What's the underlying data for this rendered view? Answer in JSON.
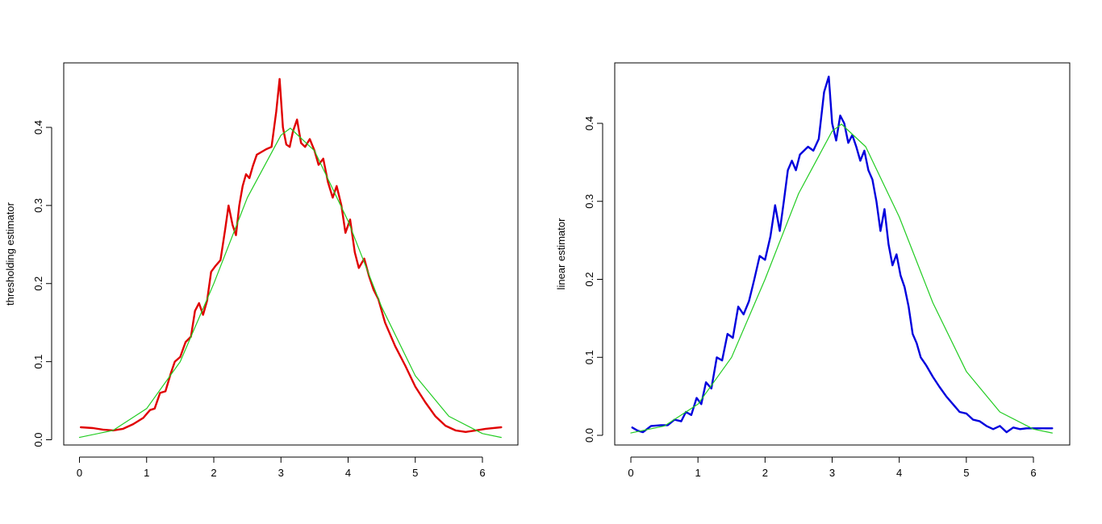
{
  "chart_data": [
    {
      "type": "line",
      "title": "",
      "xlabel": "",
      "ylabel": "thresholding estimator",
      "xlim": [
        0,
        6.28
      ],
      "ylim": [
        0,
        0.4736
      ],
      "x_ticks": [
        0,
        1,
        2,
        3,
        4,
        5,
        6
      ],
      "y_ticks": [
        0.0,
        0.1,
        0.2,
        0.3,
        0.4
      ],
      "x_tick_labels": [
        "0",
        "1",
        "2",
        "3",
        "4",
        "5",
        "6"
      ],
      "y_tick_labels": [
        "0.0",
        "0.1",
        "0.2",
        "0.3",
        "0.4"
      ],
      "grid": false,
      "series": [
        {
          "color": "#e00000",
          "x": [
            0.02,
            0.2,
            0.35,
            0.5,
            0.65,
            0.8,
            0.95,
            1.05,
            1.12,
            1.2,
            1.28,
            1.36,
            1.42,
            1.5,
            1.58,
            1.66,
            1.72,
            1.78,
            1.84,
            1.9,
            1.96,
            2.02,
            2.1,
            2.17,
            2.22,
            2.28,
            2.33,
            2.38,
            2.43,
            2.48,
            2.53,
            2.58,
            2.64,
            2.7,
            2.78,
            2.86,
            2.93,
            2.98,
            3.03,
            3.08,
            3.13,
            3.18,
            3.24,
            3.3,
            3.36,
            3.43,
            3.5,
            3.56,
            3.63,
            3.7,
            3.77,
            3.83,
            3.9,
            3.96,
            4.03,
            4.1,
            4.16,
            4.24,
            4.31,
            4.38,
            4.45,
            4.55,
            4.7,
            4.85,
            5.0,
            5.15,
            5.3,
            5.45,
            5.6,
            5.75,
            5.9,
            6.05,
            6.28
          ],
          "y": [
            0.016,
            0.015,
            0.013,
            0.012,
            0.014,
            0.02,
            0.028,
            0.038,
            0.04,
            0.06,
            0.062,
            0.085,
            0.1,
            0.106,
            0.125,
            0.132,
            0.165,
            0.175,
            0.16,
            0.178,
            0.215,
            0.222,
            0.23,
            0.27,
            0.3,
            0.275,
            0.262,
            0.3,
            0.325,
            0.34,
            0.335,
            0.35,
            0.365,
            0.368,
            0.372,
            0.375,
            0.42,
            0.462,
            0.4,
            0.378,
            0.375,
            0.395,
            0.41,
            0.38,
            0.375,
            0.385,
            0.37,
            0.352,
            0.36,
            0.33,
            0.31,
            0.325,
            0.3,
            0.265,
            0.282,
            0.24,
            0.22,
            0.232,
            0.21,
            0.192,
            0.18,
            0.15,
            0.12,
            0.095,
            0.068,
            0.048,
            0.03,
            0.018,
            0.012,
            0.01,
            0.012,
            0.014,
            0.016
          ]
        },
        {
          "color": "#22cc22",
          "x": [
            0.0,
            0.5,
            1.0,
            1.5,
            2.0,
            2.5,
            3.0,
            3.14,
            3.5,
            4.0,
            4.5,
            5.0,
            5.5,
            6.0,
            6.28
          ],
          "y": [
            0.003,
            0.012,
            0.04,
            0.1,
            0.2,
            0.31,
            0.39,
            0.399,
            0.37,
            0.28,
            0.17,
            0.082,
            0.03,
            0.008,
            0.003
          ]
        }
      ]
    },
    {
      "type": "line",
      "title": "",
      "xlabel": "",
      "ylabel": "linear estimator",
      "xlim": [
        0,
        6.28
      ],
      "ylim": [
        0,
        0.4697
      ],
      "x_ticks": [
        0,
        1,
        2,
        3,
        4,
        5,
        6
      ],
      "y_ticks": [
        0.0,
        0.1,
        0.2,
        0.3,
        0.4
      ],
      "x_tick_labels": [
        "0",
        "1",
        "2",
        "3",
        "4",
        "5",
        "6"
      ],
      "y_tick_labels": [
        "0.0",
        "0.1",
        "0.2",
        "0.3",
        "0.4"
      ],
      "grid": false,
      "series": [
        {
          "color": "#0000dd",
          "x": [
            0.02,
            0.1,
            0.18,
            0.3,
            0.45,
            0.55,
            0.65,
            0.75,
            0.82,
            0.9,
            0.98,
            1.05,
            1.12,
            1.2,
            1.28,
            1.36,
            1.44,
            1.52,
            1.6,
            1.68,
            1.76,
            1.84,
            1.92,
            2.0,
            2.08,
            2.15,
            2.22,
            2.28,
            2.34,
            2.4,
            2.46,
            2.52,
            2.58,
            2.64,
            2.72,
            2.8,
            2.88,
            2.95,
            3.0,
            3.06,
            3.12,
            3.18,
            3.24,
            3.3,
            3.36,
            3.42,
            3.48,
            3.54,
            3.6,
            3.66,
            3.72,
            3.78,
            3.84,
            3.9,
            3.96,
            4.02,
            4.08,
            4.14,
            4.2,
            4.26,
            4.32,
            4.4,
            4.5,
            4.6,
            4.7,
            4.8,
            4.9,
            5.0,
            5.1,
            5.2,
            5.3,
            5.4,
            5.5,
            5.6,
            5.7,
            5.8,
            5.9,
            6.0,
            6.1,
            6.2,
            6.28
          ],
          "y": [
            0.01,
            0.006,
            0.004,
            0.012,
            0.013,
            0.013,
            0.02,
            0.018,
            0.03,
            0.026,
            0.048,
            0.04,
            0.068,
            0.06,
            0.1,
            0.096,
            0.13,
            0.125,
            0.165,
            0.155,
            0.172,
            0.2,
            0.23,
            0.225,
            0.255,
            0.295,
            0.262,
            0.3,
            0.34,
            0.352,
            0.34,
            0.36,
            0.365,
            0.37,
            0.365,
            0.38,
            0.44,
            0.46,
            0.4,
            0.378,
            0.41,
            0.4,
            0.375,
            0.385,
            0.37,
            0.352,
            0.365,
            0.34,
            0.328,
            0.3,
            0.262,
            0.29,
            0.245,
            0.218,
            0.232,
            0.205,
            0.19,
            0.165,
            0.13,
            0.118,
            0.1,
            0.09,
            0.075,
            0.062,
            0.05,
            0.04,
            0.03,
            0.028,
            0.02,
            0.018,
            0.012,
            0.008,
            0.012,
            0.004,
            0.01,
            0.008,
            0.009,
            0.009,
            0.009,
            0.009,
            0.009
          ],
          "note_overlap": false
        },
        {
          "color": "#22cc22",
          "x": [
            0.0,
            0.5,
            1.0,
            1.5,
            2.0,
            2.5,
            3.0,
            3.14,
            3.5,
            4.0,
            4.5,
            5.0,
            5.5,
            6.0,
            6.28
          ],
          "y": [
            0.003,
            0.012,
            0.04,
            0.1,
            0.2,
            0.31,
            0.39,
            0.399,
            0.37,
            0.28,
            0.17,
            0.082,
            0.03,
            0.008,
            0.003
          ]
        }
      ]
    }
  ]
}
